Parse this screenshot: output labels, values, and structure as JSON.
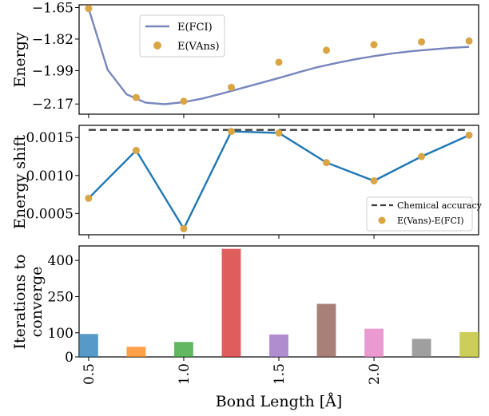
{
  "chart_data": [
    {
      "type": "line",
      "ylabel": "Energy",
      "yticks": [
        -1.65,
        -1.82,
        -1.99,
        -2.17
      ],
      "ytick_labels": [
        "−1.65",
        "−1.82",
        "−1.99",
        "−2.17"
      ],
      "ylim": [
        -2.225,
        -1.635
      ],
      "xlim": [
        0.45,
        2.55
      ],
      "legend_position": "upper-left",
      "series": [
        {
          "name": "E(FCI)",
          "style": "line",
          "color": "#7886bd",
          "x": [
            0.5,
            0.6,
            0.7,
            0.8,
            0.9,
            1.0,
            1.1,
            1.2,
            1.3,
            1.4,
            1.5,
            1.6,
            1.7,
            1.8,
            1.9,
            2.0,
            2.1,
            2.2,
            2.3,
            2.4,
            2.5
          ],
          "y": [
            -1.655,
            -1.985,
            -2.118,
            -2.163,
            -2.171,
            -2.16,
            -2.14,
            -2.114,
            -2.086,
            -2.058,
            -2.03,
            -2.0,
            -1.972,
            -1.95,
            -1.929,
            -1.912,
            -1.897,
            -1.885,
            -1.876,
            -1.868,
            -1.862
          ]
        },
        {
          "name": "E(VAns)",
          "style": "scatter",
          "color": "#d9a545",
          "x": [
            0.5,
            0.75,
            1.0,
            1.25,
            1.5,
            1.75,
            2.0,
            2.25,
            2.5
          ],
          "y": [
            -1.655,
            -2.135,
            -2.155,
            -2.08,
            -1.945,
            -1.88,
            -1.85,
            -1.835,
            -1.83
          ]
        }
      ]
    },
    {
      "type": "line",
      "ylabel": "Energy shift",
      "yticks": [
        0.0005,
        0.001,
        0.0015
      ],
      "ytick_labels": [
        "0.0005",
        "0.0010",
        "0.0015"
      ],
      "ylim": [
        0.00022,
        0.00166
      ],
      "xlim": [
        0.45,
        2.55
      ],
      "legend_position": "lower-right",
      "series": [
        {
          "name": "Chemical accuracy",
          "style": "dashed",
          "color": "#3c3c3c",
          "x": [
            0.5,
            2.5
          ],
          "y": [
            0.0016,
            0.0016
          ]
        },
        {
          "name": "E(Vans)-E(FCI)",
          "style": "line+scatter",
          "line_color": "#1f77b4",
          "color": "#d9a545",
          "x": [
            0.5,
            0.75,
            1.0,
            1.25,
            1.5,
            1.75,
            2.0,
            2.25,
            2.5
          ],
          "y": [
            0.0007,
            0.00133,
            0.0003,
            0.00158,
            0.00156,
            0.00117,
            0.00093,
            0.00125,
            0.00153
          ]
        }
      ]
    },
    {
      "type": "bar",
      "ylabel": "Iterations to converge",
      "ylabel_lines": [
        "Iterations to",
        "converge"
      ],
      "xlabel": "Bond Length [Å]",
      "yticks": [
        0,
        100,
        250,
        400
      ],
      "ytick_labels": [
        "0",
        "100",
        "250",
        "400"
      ],
      "ylim": [
        0,
        460
      ],
      "xlim": [
        0.45,
        2.55
      ],
      "xticks": [
        0.5,
        1.0,
        1.5,
        2.0
      ],
      "xtick_labels": [
        "0.5",
        "1.0",
        "1.5",
        "2.0"
      ],
      "bar_width": 0.1,
      "x": [
        0.5,
        0.75,
        1.0,
        1.25,
        1.5,
        1.75,
        2.0,
        2.25,
        2.5
      ],
      "values": [
        95,
        42,
        62,
        448,
        93,
        220,
        117,
        75,
        103
      ],
      "colors": [
        "#1f77b4",
        "#ff7f0e",
        "#2ca02c",
        "#d62728",
        "#9467bd",
        "#8c564b",
        "#e377c2",
        "#7f7f7f",
        "#bcbd22"
      ]
    }
  ]
}
